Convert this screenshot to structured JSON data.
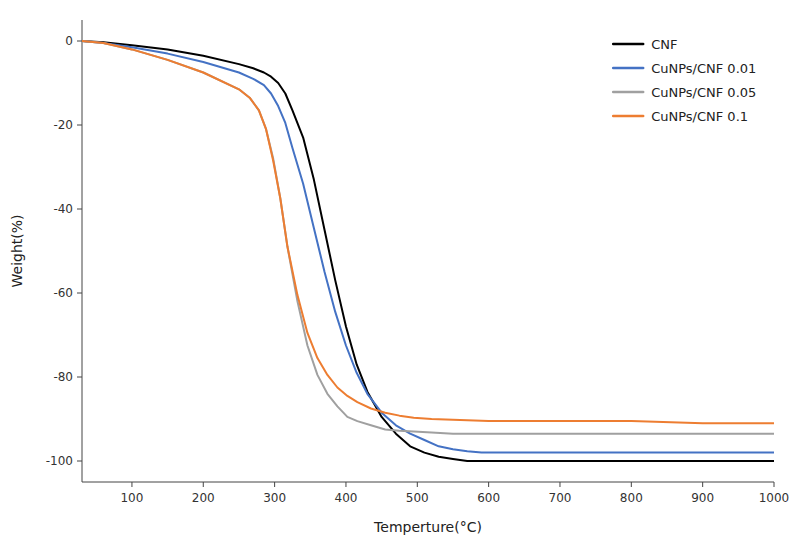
{
  "chart_data": {
    "type": "line",
    "xlabel": "Temperture(°C)",
    "ylabel": "Weight(%)",
    "xlim": [
      30,
      1000
    ],
    "ylim": [
      -105,
      5
    ],
    "xticks": [
      100,
      200,
      300,
      400,
      500,
      600,
      700,
      800,
      900,
      1000
    ],
    "yticks": [
      0,
      -20,
      -40,
      -60,
      -80,
      -100
    ],
    "grid": false,
    "legend": "upper right",
    "series": [
      {
        "name": "CNF",
        "color": "#000000",
        "x": [
          30,
          60,
          100,
          150,
          200,
          250,
          270,
          285,
          295,
          305,
          315,
          325,
          340,
          355,
          370,
          385,
          400,
          415,
          430,
          450,
          470,
          490,
          510,
          530,
          550,
          570,
          590,
          610,
          650,
          700,
          800,
          1000
        ],
        "values": [
          0,
          -0.3,
          -1.0,
          -2.0,
          -3.5,
          -5.5,
          -6.5,
          -7.5,
          -8.5,
          -10.0,
          -12.5,
          -16.5,
          -23.0,
          -33.0,
          -45.0,
          -57.0,
          -68.0,
          -77.0,
          -83.5,
          -89.5,
          -93.5,
          -96.5,
          -98.0,
          -99.0,
          -99.5,
          -100.0,
          -100.0,
          -100.0,
          -100.0,
          -100.0,
          -100.0,
          -100.0
        ]
      },
      {
        "name": "CuNPs/CNF 0.01",
        "color": "#4472c4",
        "x": [
          30,
          60,
          100,
          150,
          200,
          250,
          270,
          285,
          295,
          305,
          315,
          325,
          340,
          355,
          370,
          385,
          400,
          415,
          430,
          450,
          470,
          490,
          510,
          530,
          550,
          570,
          590,
          610,
          650,
          700,
          800,
          1000
        ],
        "values": [
          0,
          -0.5,
          -1.5,
          -3.0,
          -5.0,
          -7.5,
          -9.0,
          -10.5,
          -12.5,
          -15.5,
          -19.5,
          -25.5,
          -34.0,
          -44.5,
          -55.0,
          -64.5,
          -72.5,
          -79.0,
          -84.0,
          -88.5,
          -91.5,
          -93.5,
          -95.0,
          -96.5,
          -97.2,
          -97.7,
          -98.0,
          -98.0,
          -98.0,
          -98.0,
          -98.0,
          -98.0
        ]
      },
      {
        "name": "CuNPs/CNF 0.05",
        "color": "#a0a0a0",
        "x": [
          30,
          60,
          100,
          150,
          200,
          250,
          265,
          278,
          288,
          298,
          308,
          318,
          332,
          346,
          360,
          374,
          388,
          402,
          416,
          435,
          455,
          475,
          495,
          520,
          550,
          600,
          700,
          800,
          1000
        ],
        "values": [
          0,
          -0.5,
          -2.0,
          -4.5,
          -7.5,
          -11.5,
          -13.5,
          -16.5,
          -21.0,
          -28.0,
          -37.5,
          -49.0,
          -62.0,
          -72.5,
          -79.5,
          -84.0,
          -87.0,
          -89.5,
          -90.5,
          -91.5,
          -92.5,
          -92.8,
          -93.0,
          -93.2,
          -93.5,
          -93.5,
          -93.5,
          -93.5,
          -93.5
        ]
      },
      {
        "name": "CuNPs/CNF 0.1",
        "color": "#ed7d31",
        "x": [
          30,
          60,
          100,
          150,
          200,
          250,
          265,
          278,
          288,
          298,
          308,
          318,
          332,
          346,
          360,
          374,
          388,
          402,
          416,
          435,
          455,
          475,
          495,
          520,
          550,
          600,
          700,
          800,
          900,
          1000
        ],
        "values": [
          0,
          -0.5,
          -2.0,
          -4.5,
          -7.5,
          -11.5,
          -13.5,
          -16.5,
          -21.0,
          -28.5,
          -37.5,
          -49.0,
          -60.5,
          -69.5,
          -75.5,
          -79.5,
          -82.5,
          -84.5,
          -86.0,
          -87.5,
          -88.5,
          -89.2,
          -89.7,
          -90.0,
          -90.2,
          -90.5,
          -90.5,
          -90.5,
          -91.0,
          -91.0
        ]
      }
    ]
  }
}
